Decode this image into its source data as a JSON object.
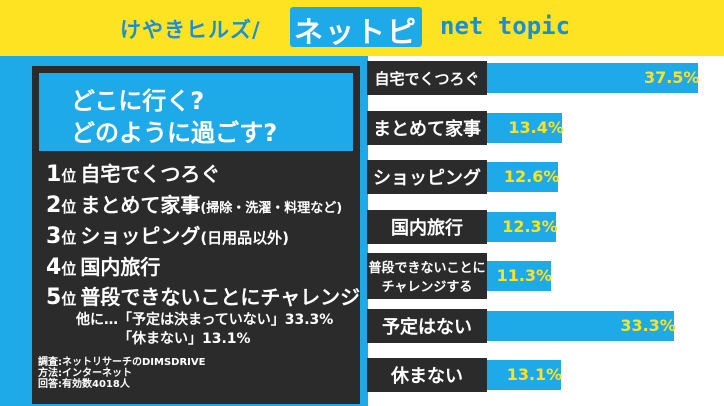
{
  "header": {
    "brand": "けやきヒルズ/",
    "logo": "ネットピ",
    "subtitle": "net topic"
  },
  "question": {
    "line1": "どこに行く?",
    "line2": "どのように過ごす?"
  },
  "ranking": [
    {
      "num": "1",
      "pos": "位",
      "label": "自宅でくつろぐ",
      "note": ""
    },
    {
      "num": "2",
      "pos": "位",
      "label": "まとめて家事",
      "note": "(掃除・洗濯・料理など)"
    },
    {
      "num": "3",
      "pos": "位",
      "label": "ショッピング",
      "note": "(日用品以外)"
    },
    {
      "num": "4",
      "pos": "位",
      "label": "国内旅行",
      "note": ""
    },
    {
      "num": "5",
      "pos": "位",
      "label": "普段できないことにチャレンジ",
      "note": ""
    }
  ],
  "others": {
    "line1": "他に…「予定は決まっていない」33.3%",
    "line2": "「休まない」13.1%"
  },
  "source": {
    "line1": "調査:ネットリサーチのDIMSDRIVE",
    "line2": "方法:インターネット",
    "line3": "回答:有効数4018人"
  },
  "colors": {
    "accent_blue": "#1ea9e8",
    "banner_yellow": "#fde321",
    "dark_panel": "#2b2b2b",
    "value_text": "#fde321"
  },
  "chart_data": {
    "type": "bar",
    "orientation": "horizontal",
    "categories": [
      "自宅でくつろぐ",
      "まとめて家事",
      "ショッピング",
      "国内旅行",
      "普段できないことにチャレンジする",
      "予定はない",
      "休まない"
    ],
    "category_lines": [
      [
        "自宅でくつろぐ"
      ],
      [
        "まとめて家事"
      ],
      [
        "ショッピング"
      ],
      [
        "国内旅行"
      ],
      [
        "普段できないことに",
        "チャレンジする"
      ],
      [
        "予定はない"
      ],
      [
        "休まない"
      ]
    ],
    "values": [
      37.5,
      13.4,
      12.6,
      12.3,
      11.3,
      33.3,
      13.1
    ],
    "value_labels": [
      "37.5%",
      "13.4%",
      "12.6%",
      "12.3%",
      "11.3%",
      "33.3%",
      "13.1%"
    ],
    "xlim": [
      0,
      40
    ],
    "grid": false,
    "legend": "none"
  }
}
